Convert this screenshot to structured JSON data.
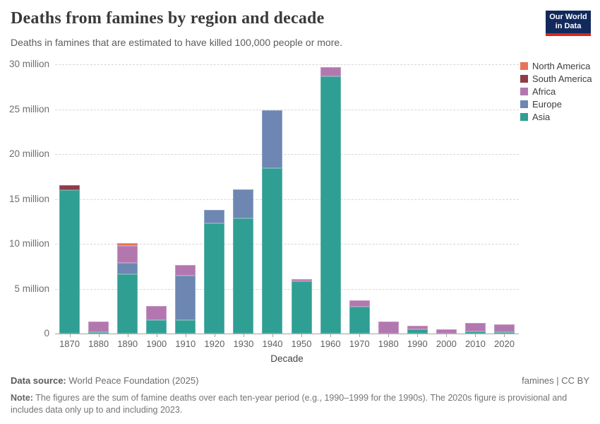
{
  "header": {
    "title": "Deaths from famines by region and decade",
    "subtitle": "Deaths in famines that are estimated to have killed 100,000 people or more.",
    "logo": {
      "line1": "Our World",
      "line2": "in Data",
      "bg_color": "#12295c",
      "accent_color": "#d7261f"
    }
  },
  "chart_data": {
    "type": "bar",
    "stacked": true,
    "title": "Deaths from famines by region and decade",
    "subtitle": "Deaths in famines that are estimated to have killed 100,000 people or more.",
    "unit": "million deaths",
    "xlabel": "Decade",
    "ylabel": "",
    "ylim": [
      0,
      30
    ],
    "yticks": [
      0,
      5,
      10,
      15,
      20,
      25,
      30
    ],
    "ytick_labels": [
      "0",
      "5 million",
      "10 million",
      "15 million",
      "20 million",
      "25 million",
      "30 million"
    ],
    "grid": "dashed horizontal",
    "legend_position": "right",
    "categories": [
      "1870",
      "1880",
      "1890",
      "1900",
      "1910",
      "1920",
      "1930",
      "1940",
      "1950",
      "1960",
      "1970",
      "1980",
      "1990",
      "2000",
      "2010",
      "2020"
    ],
    "stack_order_bottom_to_top": [
      "Asia",
      "Europe",
      "Africa",
      "South America",
      "North America"
    ],
    "series": [
      {
        "name": "Asia",
        "color": "#2f9e93",
        "values": [
          16.0,
          0.15,
          6.65,
          1.5,
          1.5,
          12.3,
          12.85,
          18.45,
          5.8,
          28.7,
          3.0,
          0,
          0.5,
          0,
          0.25,
          0.15
        ]
      },
      {
        "name": "Europe",
        "color": "#6d87b2",
        "values": [
          0,
          0,
          1.25,
          0,
          4.95,
          1.45,
          3.2,
          6.45,
          0,
          0,
          0,
          0,
          0,
          0,
          0,
          0
        ]
      },
      {
        "name": "Africa",
        "color": "#b377af",
        "values": [
          0,
          1.2,
          1.9,
          1.55,
          1.15,
          0,
          0,
          0,
          0.25,
          0.95,
          0.7,
          1.35,
          0.4,
          0.5,
          0.9,
          0.85
        ]
      },
      {
        "name": "South America",
        "color": "#8e3c48",
        "values": [
          0.55,
          0,
          0,
          0,
          0,
          0,
          0,
          0,
          0,
          0,
          0,
          0,
          0,
          0,
          0,
          0
        ]
      },
      {
        "name": "North America",
        "color": "#e8735c",
        "values": [
          0,
          0,
          0.3,
          0,
          0,
          0,
          0,
          0,
          0,
          0,
          0,
          0,
          0,
          0,
          0,
          0
        ]
      }
    ]
  },
  "legend": {
    "items": [
      {
        "label": "North America",
        "color": "#e8735c"
      },
      {
        "label": "South America",
        "color": "#8e3c48"
      },
      {
        "label": "Africa",
        "color": "#b377af"
      },
      {
        "label": "Europe",
        "color": "#6d87b2"
      },
      {
        "label": "Asia",
        "color": "#2f9e93"
      }
    ]
  },
  "footer": {
    "datasource_label": "Data source:",
    "datasource_text": "World Peace Foundation (2025)",
    "license": "famines | CC BY",
    "note_label": "Note:",
    "note_text": "The figures are the sum of famine deaths over each ten-year period (e.g., 1990–1999 for the 1990s). The 2020s figure is provisional and includes data only up to and including 2023."
  }
}
